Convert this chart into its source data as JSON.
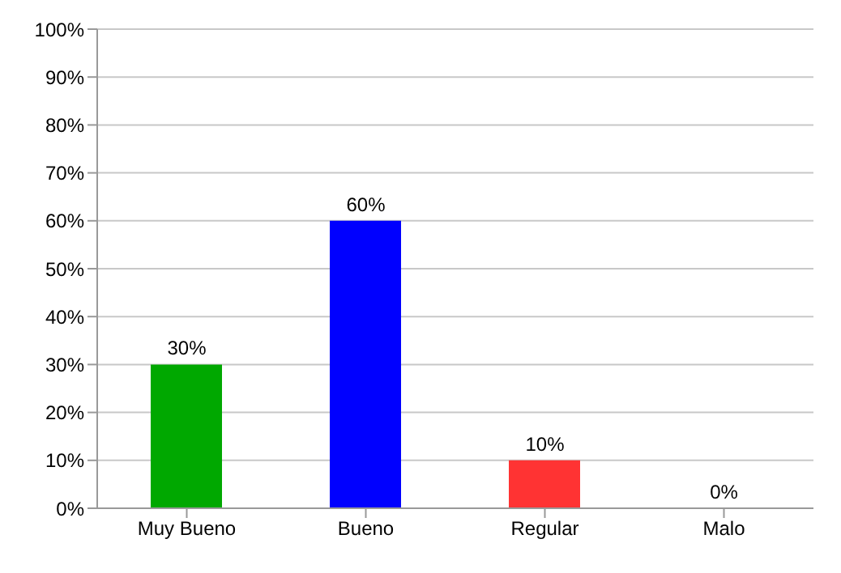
{
  "chart_data": {
    "type": "bar",
    "categories": [
      "Muy Bueno",
      "Bueno",
      "Regular",
      "Malo"
    ],
    "values": [
      30,
      60,
      10,
      0
    ],
    "colors": [
      "#00a800",
      "#0000ff",
      "#ff3333",
      "#999999"
    ],
    "value_labels": [
      "30%",
      "60%",
      "10%",
      "0%"
    ],
    "ylim": [
      0,
      100
    ],
    "yticks": [
      {
        "value": 0,
        "label": "0%"
      },
      {
        "value": 10,
        "label": "10%"
      },
      {
        "value": 20,
        "label": "20%"
      },
      {
        "value": 30,
        "label": "30%"
      },
      {
        "value": 40,
        "label": "40%"
      },
      {
        "value": 50,
        "label": "50%"
      },
      {
        "value": 60,
        "label": "60%"
      },
      {
        "value": 70,
        "label": "70%"
      },
      {
        "value": 80,
        "label": "80%"
      },
      {
        "value": 90,
        "label": "90%"
      },
      {
        "value": 100,
        "label": "100%"
      }
    ],
    "grid": "y"
  }
}
